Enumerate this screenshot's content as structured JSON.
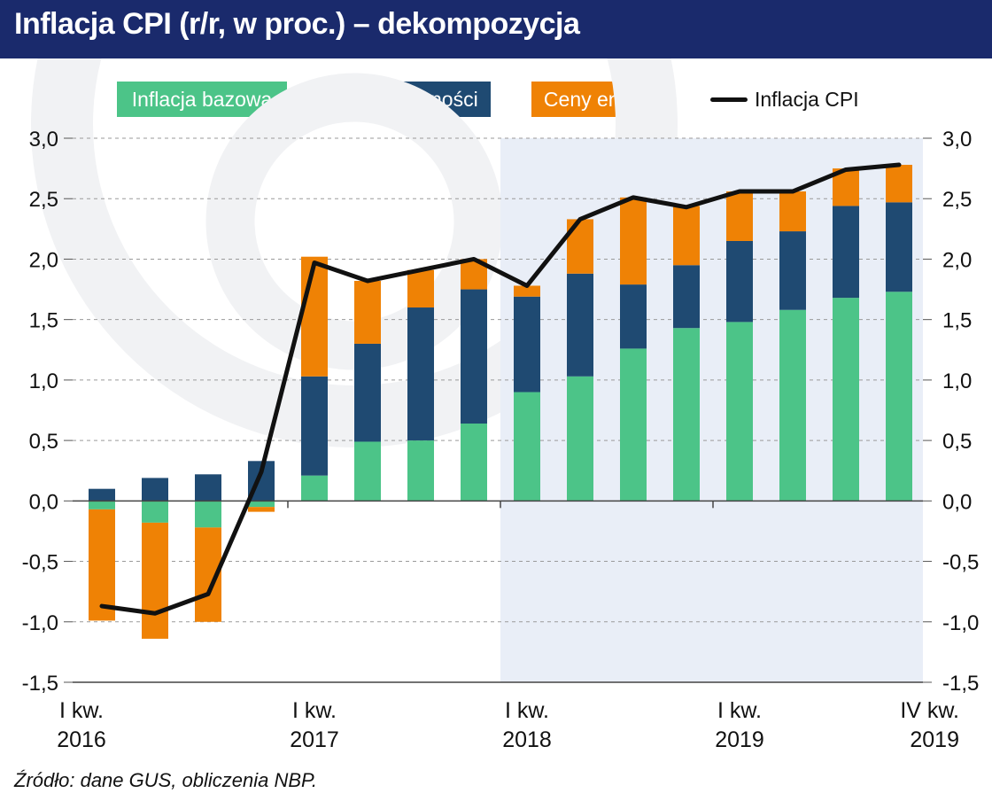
{
  "header": {
    "title": "Inflacja CPI (r/r, w proc.) – dekompozycja"
  },
  "source": "Źródło: dane GUS, obliczenia NBP.",
  "legend": {
    "core": "Inflacja bazowa",
    "food": "Ceny żywności",
    "energy": "Ceny energii",
    "cpi": "Inflacja CPI"
  },
  "colors": {
    "header": "#1a2a6c",
    "core": "#4cc488",
    "food": "#1f4a72",
    "energy": "#ef8205",
    "cpi": "#111111",
    "shade": "#e9eef7"
  },
  "chart_data": {
    "type": "bar",
    "stacked": true,
    "ylim": [
      -1.5,
      3.0
    ],
    "yticks": [
      "3,0",
      "2,5",
      "2,0",
      "1,5",
      "1,0",
      "0,5",
      "0,0",
      "-0,5",
      "-1,0",
      "-1,5"
    ],
    "x_labels": [
      {
        "index": 0,
        "line1": "I kw.",
        "line2": "2016"
      },
      {
        "index": 4,
        "line1": "I kw.",
        "line2": "2017"
      },
      {
        "index": 8,
        "line1": "I kw.",
        "line2": "2018"
      },
      {
        "index": 12,
        "line1": "I kw.",
        "line2": "2019"
      },
      {
        "index": 15,
        "line1": "IV kw.",
        "line2": "2019"
      }
    ],
    "forecast_shade_from_index": 7.5,
    "categories": [
      "I kw. 2016",
      "II kw. 2016",
      "III kw. 2016",
      "IV kw. 2016",
      "I kw. 2017",
      "II kw. 2017",
      "III kw. 2017",
      "IV kw. 2017",
      "I kw. 2018",
      "II kw. 2018",
      "III kw. 2018",
      "IV kw. 2018",
      "I kw. 2019",
      "II kw. 2019",
      "III kw. 2019",
      "IV kw. 2019"
    ],
    "series": [
      {
        "name": "Inflacja bazowa",
        "values": [
          -0.07,
          -0.18,
          -0.22,
          -0.05,
          0.21,
          0.49,
          0.5,
          0.64,
          0.9,
          1.03,
          1.26,
          1.43,
          1.48,
          1.58,
          1.68,
          1.73
        ]
      },
      {
        "name": "Ceny żywności",
        "values": [
          0.1,
          0.19,
          0.22,
          0.33,
          0.82,
          0.81,
          1.1,
          1.11,
          0.79,
          0.85,
          0.53,
          0.52,
          0.67,
          0.65,
          0.76,
          0.74
        ]
      },
      {
        "name": "Ceny energii",
        "values": [
          -0.92,
          -0.96,
          -0.78,
          -0.04,
          0.99,
          0.52,
          0.31,
          0.25,
          0.09,
          0.45,
          0.72,
          0.49,
          0.41,
          0.33,
          0.31,
          0.31
        ]
      },
      {
        "name": "Inflacja CPI",
        "type": "line",
        "values": [
          -0.87,
          -0.93,
          -0.77,
          0.24,
          1.97,
          1.82,
          1.91,
          2.0,
          1.78,
          2.33,
          2.51,
          2.43,
          2.56,
          2.56,
          2.74,
          2.78
        ]
      }
    ]
  }
}
